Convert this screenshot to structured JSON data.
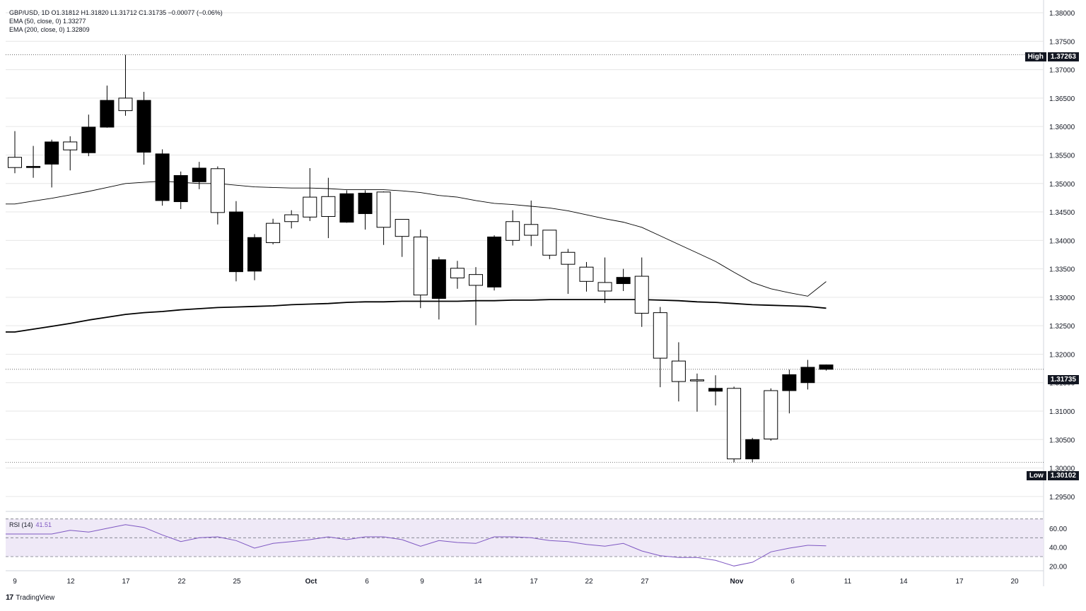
{
  "legend": {
    "symbol_line": "GBP/USD, 1D O1.31812 H1.31820 L1.31712 C1.31735 −0.00077 (−0.06%)",
    "ema50_line": "EMA (50, close, 0) 1.33277",
    "ema200_line": "EMA (200, close, 0) 1.32809"
  },
  "rsi": {
    "label": "RSI (14)",
    "value": "41.51"
  },
  "branding": {
    "logo": "17",
    "name": "TradingView"
  },
  "markers": {
    "high_label": "High",
    "high_value": "1.37263",
    "low_label": "Low",
    "low_value": "1.30102",
    "last_value": "1.31735"
  },
  "colors": {
    "up_fill": "#ffffff",
    "down_fill": "#000000",
    "candle_stroke": "#000000",
    "rsi_line": "#7e57c2",
    "rsi_band": "#ede7f6"
  },
  "chart_data": {
    "type": "candlestick",
    "ylim": [
      1.2925,
      1.381
    ],
    "y_ticks": [
      "1.38000",
      "1.37500",
      "1.37000",
      "1.36500",
      "1.36000",
      "1.35500",
      "1.35000",
      "1.34500",
      "1.34000",
      "1.33500",
      "1.33000",
      "1.32500",
      "1.32000",
      "1.31500",
      "1.31000",
      "1.30500",
      "1.30000",
      "1.29500"
    ],
    "x_ticks": [
      "9",
      "12",
      "17",
      "22",
      "25",
      "Oct",
      "6",
      "9",
      "14",
      "17",
      "22",
      "27",
      "Nov",
      "6",
      "11",
      "14",
      "17",
      "20"
    ],
    "high_line": 1.37263,
    "low_line": 1.30102,
    "last_line": 1.31735,
    "candles": [
      {
        "o": 1.3528,
        "h": 1.3592,
        "l": 1.3518,
        "c": 1.3546
      },
      {
        "o": 1.353,
        "h": 1.3566,
        "l": 1.351,
        "c": 1.3528
      },
      {
        "o": 1.3573,
        "h": 1.3577,
        "l": 1.3493,
        "c": 1.3534
      },
      {
        "o": 1.3559,
        "h": 1.3583,
        "l": 1.3523,
        "c": 1.3573
      },
      {
        "o": 1.3599,
        "h": 1.3621,
        "l": 1.3548,
        "c": 1.3554
      },
      {
        "o": 1.3646,
        "h": 1.3672,
        "l": 1.3598,
        "c": 1.3599
      },
      {
        "o": 1.3628,
        "h": 1.3726,
        "l": 1.3619,
        "c": 1.365
      },
      {
        "o": 1.3646,
        "h": 1.3661,
        "l": 1.3533,
        "c": 1.3555
      },
      {
        "o": 1.3552,
        "h": 1.356,
        "l": 1.3461,
        "c": 1.347
      },
      {
        "o": 1.3514,
        "h": 1.3521,
        "l": 1.3455,
        "c": 1.3468
      },
      {
        "o": 1.3527,
        "h": 1.3538,
        "l": 1.349,
        "c": 1.3503
      },
      {
        "o": 1.3449,
        "h": 1.353,
        "l": 1.3428,
        "c": 1.3526
      },
      {
        "o": 1.345,
        "h": 1.3469,
        "l": 1.3328,
        "c": 1.3345
      },
      {
        "o": 1.3405,
        "h": 1.3411,
        "l": 1.333,
        "c": 1.3346
      },
      {
        "o": 1.3396,
        "h": 1.3438,
        "l": 1.3393,
        "c": 1.343
      },
      {
        "o": 1.3433,
        "h": 1.3453,
        "l": 1.3421,
        "c": 1.3445
      },
      {
        "o": 1.3441,
        "h": 1.3527,
        "l": 1.3434,
        "c": 1.3476
      },
      {
        "o": 1.3442,
        "h": 1.351,
        "l": 1.3404,
        "c": 1.3477
      },
      {
        "o": 1.3482,
        "h": 1.3488,
        "l": 1.3431,
        "c": 1.3432
      },
      {
        "o": 1.3483,
        "h": 1.3488,
        "l": 1.3419,
        "c": 1.3447
      },
      {
        "o": 1.3423,
        "h": 1.3486,
        "l": 1.3392,
        "c": 1.3485
      },
      {
        "o": 1.3407,
        "h": 1.3435,
        "l": 1.3371,
        "c": 1.3437
      },
      {
        "o": 1.3304,
        "h": 1.3419,
        "l": 1.3281,
        "c": 1.3406
      },
      {
        "o": 1.3366,
        "h": 1.3371,
        "l": 1.3261,
        "c": 1.3298
      },
      {
        "o": 1.3334,
        "h": 1.3364,
        "l": 1.3315,
        "c": 1.3351
      },
      {
        "o": 1.3321,
        "h": 1.3353,
        "l": 1.3251,
        "c": 1.334
      },
      {
        "o": 1.3406,
        "h": 1.3409,
        "l": 1.3312,
        "c": 1.3318
      },
      {
        "o": 1.34,
        "h": 1.3453,
        "l": 1.3391,
        "c": 1.3433
      },
      {
        "o": 1.3409,
        "h": 1.347,
        "l": 1.339,
        "c": 1.3428
      },
      {
        "o": 1.3374,
        "h": 1.3417,
        "l": 1.3367,
        "c": 1.3418
      },
      {
        "o": 1.3358,
        "h": 1.3385,
        "l": 1.3306,
        "c": 1.3379
      },
      {
        "o": 1.3328,
        "h": 1.3362,
        "l": 1.331,
        "c": 1.3353
      },
      {
        "o": 1.3311,
        "h": 1.337,
        "l": 1.329,
        "c": 1.3326
      },
      {
        "o": 1.3335,
        "h": 1.335,
        "l": 1.3311,
        "c": 1.3324
      },
      {
        "o": 1.3272,
        "h": 1.337,
        "l": 1.3248,
        "c": 1.3337
      },
      {
        "o": 1.3193,
        "h": 1.3283,
        "l": 1.3142,
        "c": 1.3273
      },
      {
        "o": 1.3152,
        "h": 1.3221,
        "l": 1.3117,
        "c": 1.3188
      },
      {
        "o": 1.3153,
        "h": 1.3166,
        "l": 1.3099,
        "c": 1.3155
      },
      {
        "o": 1.314,
        "h": 1.3163,
        "l": 1.311,
        "c": 1.3135
      },
      {
        "o": 1.3016,
        "h": 1.3143,
        "l": 1.301,
        "c": 1.314
      },
      {
        "o": 1.305,
        "h": 1.3053,
        "l": 1.301,
        "c": 1.3016
      },
      {
        "o": 1.3051,
        "h": 1.314,
        "l": 1.3048,
        "c": 1.3136
      },
      {
        "o": 1.3164,
        "h": 1.3173,
        "l": 1.3096,
        "c": 1.3136
      },
      {
        "o": 1.3177,
        "h": 1.319,
        "l": 1.3138,
        "c": 1.315
      },
      {
        "o": 1.31812,
        "h": 1.3182,
        "l": 1.31712,
        "c": 1.31735
      }
    ],
    "ema50": [
      1.3464,
      1.3469,
      1.3474,
      1.348,
      1.3486,
      1.3493,
      1.35,
      1.3502,
      1.3504,
      1.3502,
      1.35,
      1.35,
      1.3497,
      1.3494,
      1.3493,
      1.3492,
      1.3492,
      1.3491,
      1.3489,
      1.3489,
      1.3489,
      1.3487,
      1.3484,
      1.3479,
      1.3476,
      1.347,
      1.3465,
      1.3463,
      1.346,
      1.3457,
      1.3452,
      1.3445,
      1.3438,
      1.3432,
      1.3423,
      1.3408,
      1.3393,
      1.3378,
      1.3363,
      1.3344,
      1.3326,
      1.3315,
      1.3308,
      1.3302,
      1.33277
    ],
    "ema200": [
      1.3239,
      1.3244,
      1.3249,
      1.3254,
      1.326,
      1.3265,
      1.327,
      1.3273,
      1.3275,
      1.3278,
      1.328,
      1.3282,
      1.3283,
      1.3284,
      1.3285,
      1.3287,
      1.3288,
      1.3289,
      1.3291,
      1.3292,
      1.3292,
      1.3293,
      1.3293,
      1.3293,
      1.3293,
      1.3294,
      1.3294,
      1.3295,
      1.3295,
      1.3296,
      1.3296,
      1.3296,
      1.3296,
      1.3296,
      1.3296,
      1.3295,
      1.3294,
      1.3292,
      1.3291,
      1.3289,
      1.3287,
      1.3286,
      1.3285,
      1.3284,
      1.32809
    ],
    "rsi_ylim": [
      15,
      75
    ],
    "rsi_ticks": [
      "60.00",
      "40.00",
      "20.00"
    ],
    "rsi_bands": [
      30,
      50,
      70
    ],
    "rsi_values": [
      54,
      54,
      54,
      58,
      56,
      60,
      64,
      61,
      53,
      46,
      50,
      51,
      47,
      39,
      44,
      46,
      48,
      51,
      48,
      51,
      51,
      48,
      41,
      47,
      45,
      44,
      51,
      51,
      50,
      47,
      46,
      43,
      41,
      44,
      36,
      31,
      29,
      29,
      26,
      20,
      24,
      35,
      39,
      42,
      41.51
    ]
  }
}
